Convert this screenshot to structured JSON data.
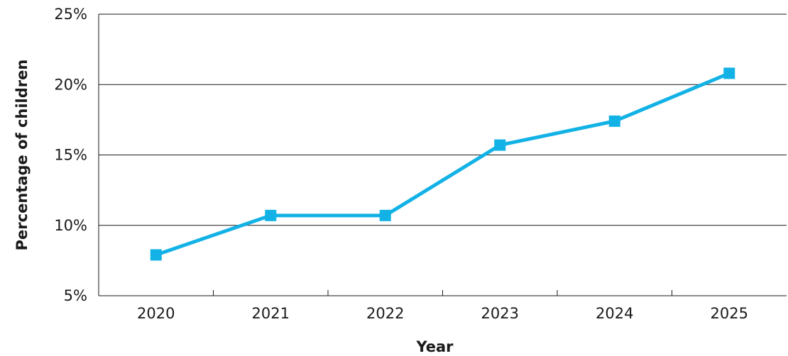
{
  "chart_data": {
    "type": "line",
    "title": "",
    "xlabel": "Year",
    "ylabel": "Percentage of children",
    "categories": [
      "2020",
      "2021",
      "2022",
      "2023",
      "2024",
      "2025"
    ],
    "series": [
      {
        "values": [
          7.9,
          10.7,
          10.7,
          15.7,
          17.4,
          20.8
        ],
        "color": "#12b2e6",
        "marker": "square"
      }
    ],
    "ylim": [
      5,
      25
    ],
    "yticks": [
      5,
      10,
      15,
      20,
      25
    ],
    "ytick_labels": [
      "5%",
      "10%",
      "15%",
      "20%",
      "25%"
    ],
    "y_unit": "%",
    "grid": "horizontal",
    "legend": "none"
  }
}
